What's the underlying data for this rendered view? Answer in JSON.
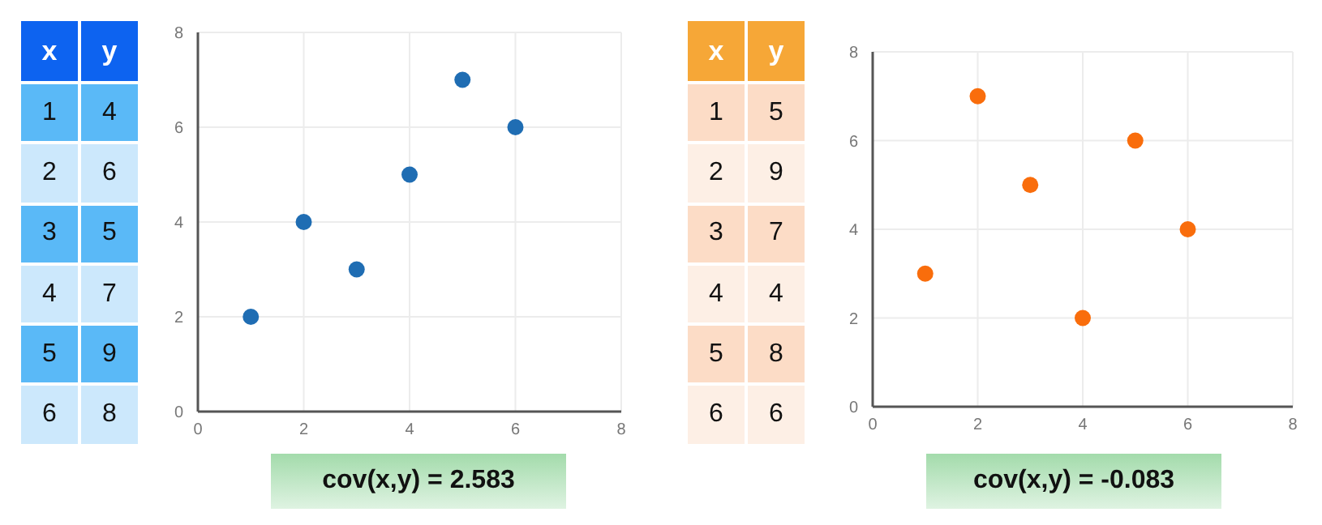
{
  "chart_data": [
    {
      "type": "heatmap",
      "ylabel": "x",
      "categories": [
        "y"
      ],
      "y_categories": [
        "1",
        "2",
        "3",
        "4",
        "5",
        "6"
      ],
      "cells": [
        [
          4
        ],
        [
          6
        ],
        [
          5
        ],
        [
          7
        ],
        [
          9
        ],
        [
          8
        ]
      ],
      "data_labels": true,
      "color": "#0d63f0",
      "colors": [
        "#5ab9f7",
        "#cce8fc",
        "#5ab9f7",
        "#cce8fc",
        "#5ab9f7",
        "#cce8fc"
      ]
    },
    {
      "type": "scatter",
      "x": [
        1,
        2,
        3,
        4,
        5,
        6
      ],
      "values": [
        2,
        4,
        3,
        5,
        7,
        6
      ],
      "color": "#1f6db3",
      "xlim": [
        0,
        8
      ],
      "xticks": [
        0,
        2,
        4,
        6,
        8
      ],
      "ylim": [
        0,
        8
      ],
      "yticks": [
        0,
        2,
        4,
        6,
        8
      ],
      "grid": true,
      "marker": "circle",
      "annotations": [
        "cov(x,y) = 2.583"
      ]
    },
    {
      "type": "heatmap",
      "ylabel": "x",
      "categories": [
        "y"
      ],
      "y_categories": [
        "1",
        "2",
        "3",
        "4",
        "5",
        "6"
      ],
      "cells": [
        [
          5
        ],
        [
          9
        ],
        [
          7
        ],
        [
          4
        ],
        [
          8
        ],
        [
          6
        ]
      ],
      "data_labels": true,
      "color": "#f6a737",
      "colors": [
        "#fcdcc6",
        "#fdefe5",
        "#fcdcc6",
        "#fdefe5",
        "#fcdcc6",
        "#fdefe5"
      ]
    },
    {
      "type": "scatter",
      "x": [
        1,
        2,
        3,
        4,
        5,
        6
      ],
      "values": [
        3,
        7,
        5,
        2,
        6,
        4
      ],
      "color": "#f96d0c",
      "xlim": [
        0,
        8
      ],
      "xticks": [
        0,
        2,
        4,
        6,
        8
      ],
      "ylim": [
        0,
        8
      ],
      "yticks": [
        0,
        2,
        4,
        6,
        8
      ],
      "grid": true,
      "marker": "circle",
      "annotations": [
        "cov(x,y) = -0.083"
      ]
    }
  ]
}
